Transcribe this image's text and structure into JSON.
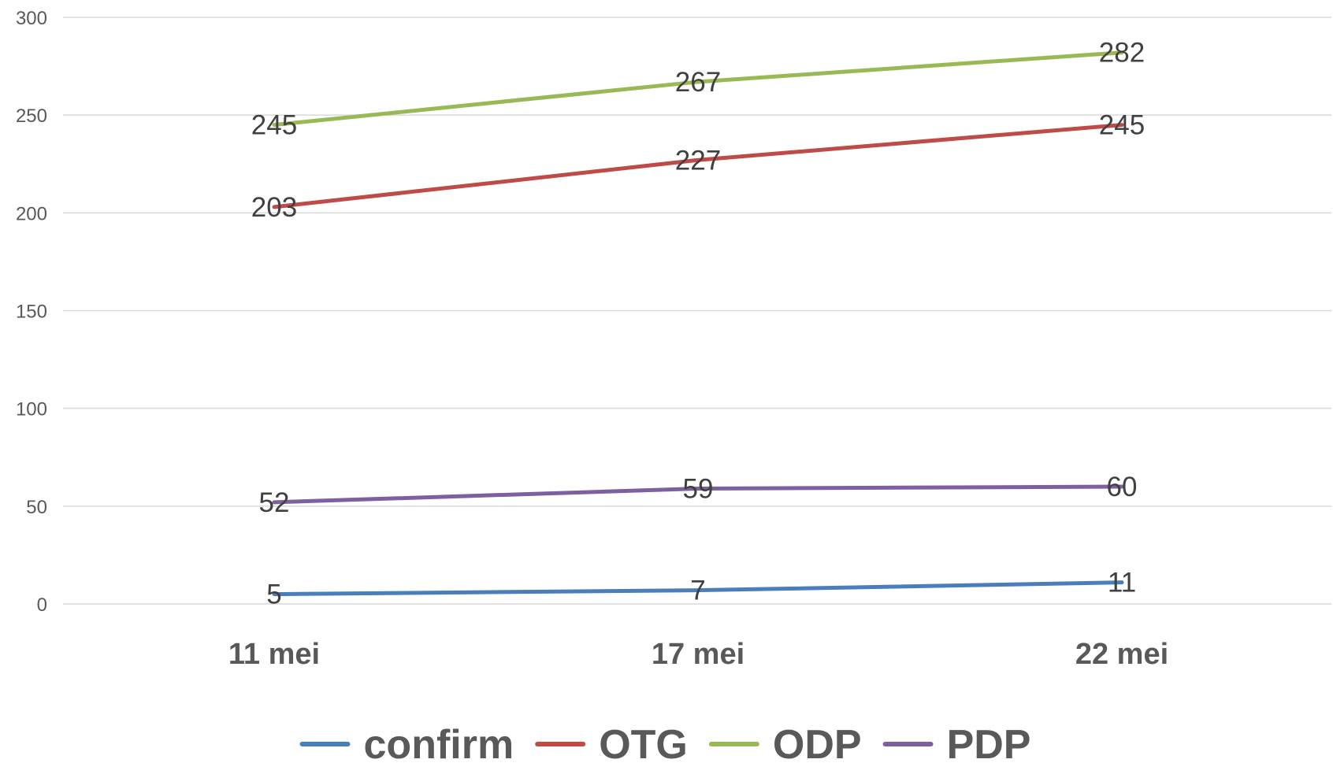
{
  "chart_data": {
    "type": "line",
    "title": "",
    "xlabel": "",
    "ylabel": "",
    "categories": [
      "11 mei",
      "17 mei",
      "22 mei"
    ],
    "ylim": [
      0,
      300
    ],
    "yticks": [
      0,
      50,
      100,
      150,
      200,
      250,
      300
    ],
    "grid": true,
    "legend": "bottom",
    "data_labels": true,
    "series": [
      {
        "name": "confirm",
        "values": [
          5,
          7,
          11
        ],
        "color": "#4a7ebb"
      },
      {
        "name": "OTG",
        "values": [
          203,
          227,
          245
        ],
        "color": "#be4b48"
      },
      {
        "name": "ODP",
        "values": [
          245,
          267,
          282
        ],
        "color": "#98b954"
      },
      {
        "name": "PDP",
        "values": [
          52,
          59,
          60
        ],
        "color": "#7d60a0"
      }
    ]
  }
}
